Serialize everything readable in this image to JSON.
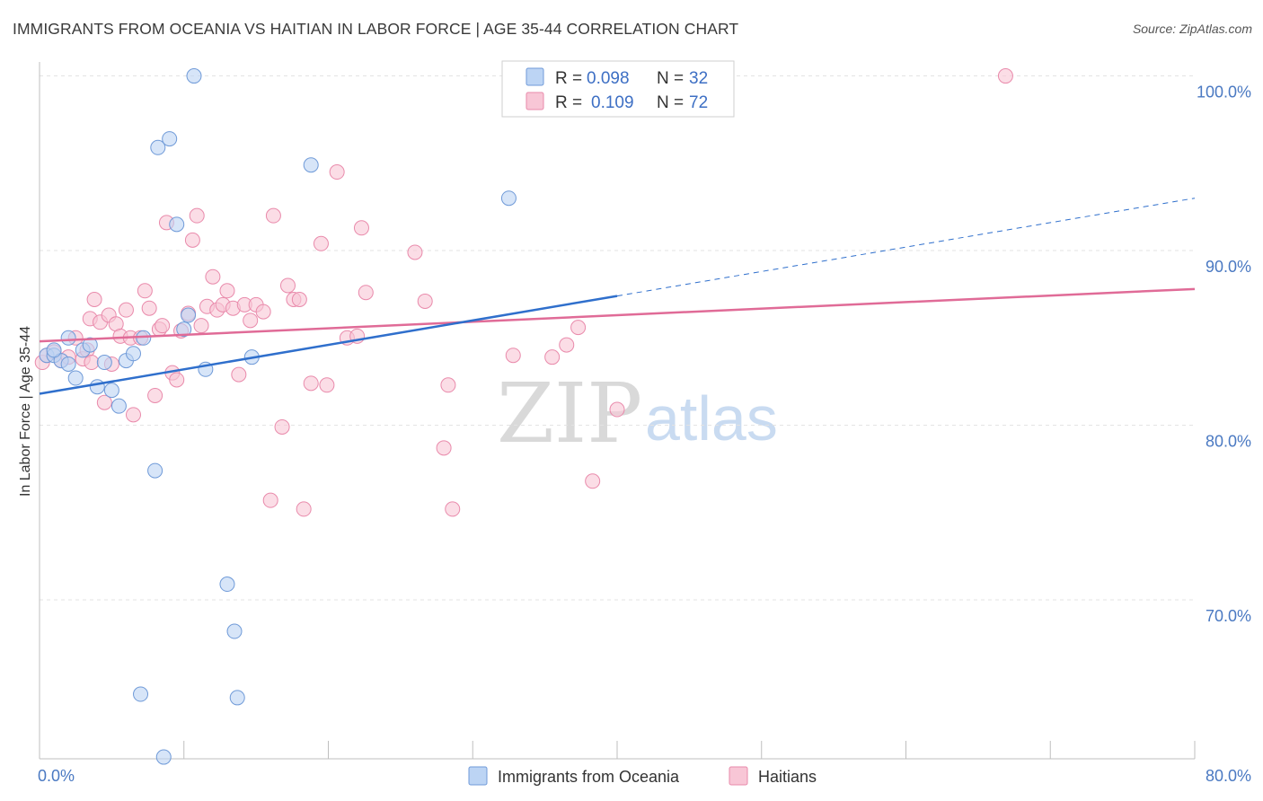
{
  "header": {
    "title": "IMMIGRANTS FROM OCEANIA VS HAITIAN IN LABOR FORCE | AGE 35-44 CORRELATION CHART",
    "source": "Source: ZipAtlas.com"
  },
  "watermark": {
    "part1": "ZIP",
    "part2": "atlas"
  },
  "colors": {
    "blue_fill": "#bcd4f4",
    "blue_stroke": "#6f9ad8",
    "blue_line": "#2f6fcc",
    "pink_fill": "#f8c6d6",
    "pink_stroke": "#e98aab",
    "pink_line": "#e06b97",
    "grid": "#e3e3e3",
    "axis": "#bfbfbf"
  },
  "legend": {
    "rows": [
      {
        "r_label": "R = ",
        "r_value": "0.098",
        "n_label": "N = ",
        "n_value": "32"
      },
      {
        "r_label": "R = ",
        "r_value": "0.109",
        "n_label": "N = ",
        "n_value": "72"
      }
    ]
  },
  "chart_data": {
    "type": "scatter",
    "xlabel": "",
    "ylabel": "In Labor Force | Age 35-44",
    "xlim": [
      0,
      80
    ],
    "ylim": [
      60.9,
      100.8
    ],
    "x_tick_labels": [
      {
        "value": 0,
        "label": "0.0%"
      },
      {
        "value": 80,
        "label": "80.0%"
      }
    ],
    "y_tick_labels": [
      {
        "value": 100,
        "label": "100.0%"
      },
      {
        "value": 90,
        "label": "90.0%"
      },
      {
        "value": 80,
        "label": "80.0%"
      },
      {
        "value": 70,
        "label": "70.0%"
      }
    ],
    "grid": true,
    "legend_position": "bottom",
    "series": [
      {
        "name": "Immigrants from Oceania",
        "color": "#6f9ad8",
        "trend": {
          "x0": 0,
          "y0": 81.8,
          "x1": 40,
          "y1": 87.4,
          "dashed_to_x": 80,
          "dashed_to_y": 93.0
        },
        "points": [
          [
            0.5,
            84.0
          ],
          [
            1.0,
            84.0
          ],
          [
            1.5,
            83.7
          ],
          [
            2.0,
            85.0
          ],
          [
            2.5,
            82.7
          ],
          [
            3.0,
            84.3
          ],
          [
            3.5,
            84.6
          ],
          [
            4.0,
            82.2
          ],
          [
            4.5,
            83.6
          ],
          [
            5.0,
            82.0
          ],
          [
            5.5,
            81.1
          ],
          [
            6.0,
            83.7
          ],
          [
            6.5,
            84.1
          ],
          [
            7.2,
            85.0
          ],
          [
            8.0,
            77.4
          ],
          [
            8.2,
            95.9
          ],
          [
            9.0,
            96.4
          ],
          [
            9.5,
            91.5
          ],
          [
            10.0,
            85.5
          ],
          [
            10.3,
            86.3
          ],
          [
            10.7,
            100.0
          ],
          [
            11.5,
            83.2
          ],
          [
            13.0,
            70.9
          ],
          [
            13.5,
            68.2
          ],
          [
            13.7,
            64.4
          ],
          [
            14.7,
            83.9
          ],
          [
            18.8,
            94.9
          ],
          [
            32.5,
            93.0
          ],
          [
            7.0,
            64.6
          ],
          [
            8.6,
            61.0
          ],
          [
            2.0,
            83.5
          ],
          [
            1.0,
            84.3
          ]
        ]
      },
      {
        "name": "Haitians",
        "color": "#e98aab",
        "trend": {
          "x0": 0,
          "y0": 84.8,
          "x1": 80,
          "y1": 87.8
        },
        "points": [
          [
            0.2,
            83.6
          ],
          [
            0.5,
            84.0
          ],
          [
            1.0,
            84.2
          ],
          [
            1.5,
            83.7
          ],
          [
            2.0,
            83.9
          ],
          [
            2.5,
            85.0
          ],
          [
            3.0,
            83.8
          ],
          [
            3.3,
            84.3
          ],
          [
            3.5,
            86.1
          ],
          [
            3.6,
            83.6
          ],
          [
            3.8,
            87.2
          ],
          [
            4.2,
            85.9
          ],
          [
            4.5,
            81.3
          ],
          [
            4.8,
            86.3
          ],
          [
            5.0,
            83.5
          ],
          [
            5.3,
            85.8
          ],
          [
            5.6,
            85.1
          ],
          [
            6.0,
            86.6
          ],
          [
            6.3,
            85.0
          ],
          [
            6.5,
            80.6
          ],
          [
            7.0,
            85.0
          ],
          [
            7.3,
            87.7
          ],
          [
            7.6,
            86.7
          ],
          [
            8.0,
            81.7
          ],
          [
            8.3,
            85.5
          ],
          [
            8.5,
            85.7
          ],
          [
            8.8,
            91.6
          ],
          [
            9.2,
            83.0
          ],
          [
            9.5,
            82.6
          ],
          [
            9.8,
            85.4
          ],
          [
            10.3,
            86.4
          ],
          [
            10.6,
            90.6
          ],
          [
            10.9,
            92.0
          ],
          [
            11.2,
            85.7
          ],
          [
            11.6,
            86.8
          ],
          [
            12.0,
            88.5
          ],
          [
            12.3,
            86.6
          ],
          [
            12.7,
            86.9
          ],
          [
            13.0,
            87.7
          ],
          [
            13.4,
            86.7
          ],
          [
            13.8,
            82.9
          ],
          [
            14.2,
            86.9
          ],
          [
            14.6,
            86.0
          ],
          [
            15.0,
            86.9
          ],
          [
            15.5,
            86.5
          ],
          [
            16.0,
            75.7
          ],
          [
            16.2,
            92.0
          ],
          [
            16.8,
            79.9
          ],
          [
            17.2,
            88.0
          ],
          [
            17.6,
            87.2
          ],
          [
            18.0,
            87.2
          ],
          [
            18.3,
            75.2
          ],
          [
            18.8,
            82.4
          ],
          [
            19.5,
            90.4
          ],
          [
            19.9,
            82.3
          ],
          [
            20.6,
            94.5
          ],
          [
            21.3,
            85.0
          ],
          [
            22.0,
            85.1
          ],
          [
            22.3,
            91.3
          ],
          [
            22.6,
            87.6
          ],
          [
            26.0,
            89.9
          ],
          [
            26.7,
            87.1
          ],
          [
            28.0,
            78.7
          ],
          [
            28.3,
            82.3
          ],
          [
            28.6,
            75.2
          ],
          [
            32.8,
            84.0
          ],
          [
            35.5,
            83.9
          ],
          [
            36.5,
            84.6
          ],
          [
            37.3,
            85.6
          ],
          [
            38.3,
            76.8
          ],
          [
            40.0,
            80.9
          ],
          [
            66.9,
            100.0
          ]
        ]
      }
    ]
  }
}
